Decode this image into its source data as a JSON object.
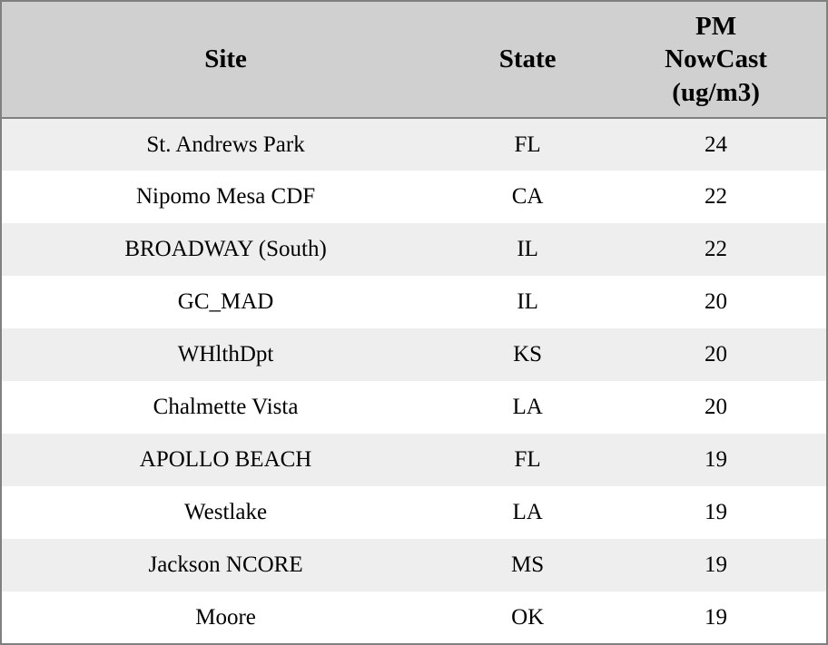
{
  "chart_data": {
    "type": "table",
    "title": "",
    "columns": [
      "Site",
      "State",
      "PM NowCast (ug/m3)"
    ],
    "rows": [
      [
        "St. Andrews Park",
        "FL",
        24
      ],
      [
        "Nipomo Mesa CDF",
        "CA",
        22
      ],
      [
        "BROADWAY (South)",
        "IL",
        22
      ],
      [
        "GC_MAD",
        "IL",
        20
      ],
      [
        "WHlthDpt",
        "KS",
        20
      ],
      [
        "Chalmette Vista",
        "LA",
        20
      ],
      [
        "APOLLO BEACH",
        "FL",
        19
      ],
      [
        "Westlake",
        "LA",
        19
      ],
      [
        "Jackson NCORE",
        "MS",
        19
      ],
      [
        "Moore",
        "OK",
        19
      ]
    ]
  },
  "colors": {
    "header_bg": "#d0d0d0",
    "row_stripe_bg": "#eeeeee",
    "row_plain_bg": "#ffffff",
    "border": "#808080",
    "text": "#000000"
  }
}
